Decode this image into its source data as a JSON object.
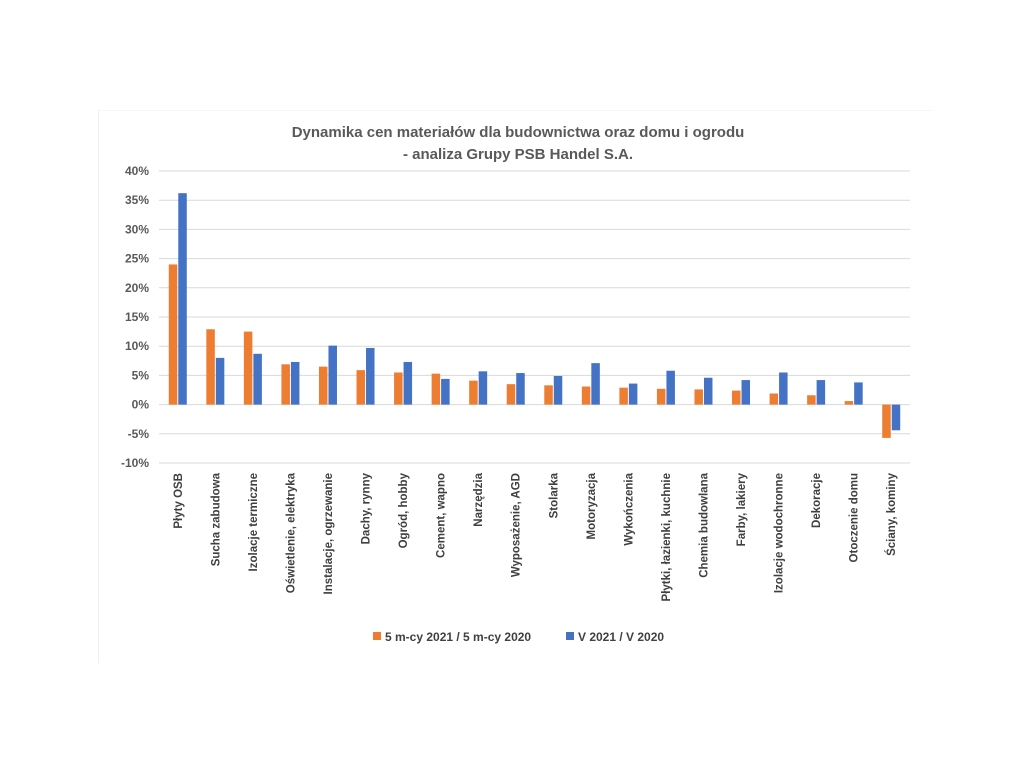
{
  "chart_data": {
    "type": "bar",
    "title_lines": [
      "Dynamika cen materiałów dla budownictwa oraz domu i ogrodu",
      "- analiza Grupy PSB Handel S.A."
    ],
    "xlabel": "",
    "ylabel": "",
    "ylim": [
      -0.1,
      0.4
    ],
    "y_ticks": [
      "40%",
      "35%",
      "30%",
      "25%",
      "20%",
      "15%",
      "10%",
      "5%",
      "0%",
      "-5%",
      "-10%"
    ],
    "grid": true,
    "legend_position": "bottom",
    "categories": [
      "Płyty OSB",
      "Sucha zabudowa",
      "Izolacje termiczne",
      "Oświetlenie, elektryka",
      "Instalacje, ogrzewanie",
      "Dachy, rynny",
      "Ogród, hobby",
      "Cement, wapno",
      "Narzędzia",
      "Wyposażenie, AGD",
      "Stolarka",
      "Motoryzacja",
      "Wykończenia",
      "Płytki, łazienki, kuchnie",
      "Chemia budowlana",
      "Farby, lakiery",
      "Izolacje wodochronne",
      "Dekoracje",
      "Otoczenie domu",
      "Ściany, kominy"
    ],
    "series": [
      {
        "name": "5 m-cy 2021 / 5 m-cy 2020",
        "color": "#ed7d31",
        "values": [
          0.24,
          0.129,
          0.125,
          0.069,
          0.065,
          0.059,
          0.055,
          0.053,
          0.041,
          0.035,
          0.033,
          0.031,
          0.029,
          0.027,
          0.026,
          0.024,
          0.019,
          0.016,
          0.006,
          -0.057
        ]
      },
      {
        "name": "V 2021 / V 2020",
        "color": "#4472c4",
        "values": [
          0.362,
          0.08,
          0.087,
          0.073,
          0.101,
          0.097,
          0.073,
          0.044,
          0.057,
          0.054,
          0.049,
          0.071,
          0.036,
          0.058,
          0.046,
          0.042,
          0.055,
          0.042,
          0.038,
          -0.044
        ]
      }
    ]
  }
}
